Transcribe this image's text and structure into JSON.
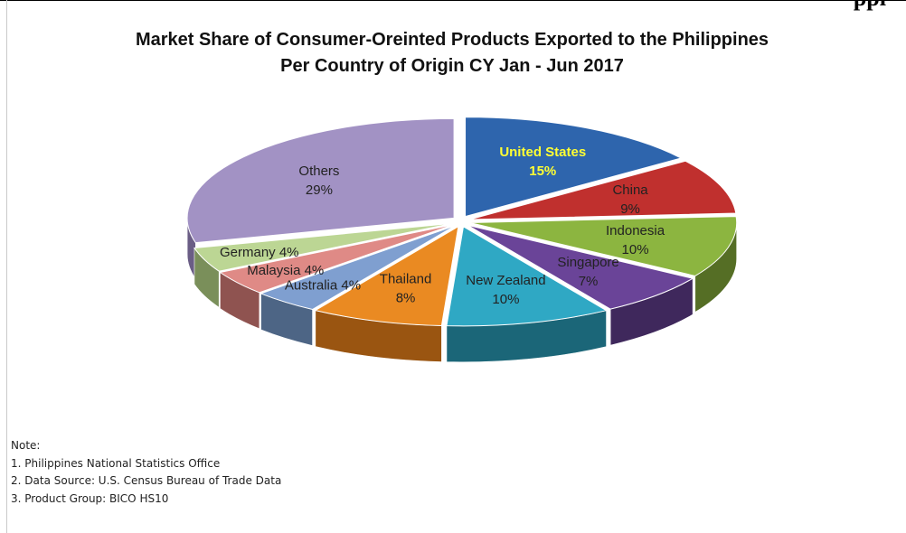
{
  "cut_heading": "ppi",
  "chart_data": {
    "type": "pie",
    "title_line1": "Market Share of Consumer-Oreinted Products Exported to the Philippines",
    "title_line2": "Per Country of Origin CY Jan - Jun 2017",
    "slices": [
      {
        "label": "United States",
        "value": 15,
        "pct": "15%",
        "color": "#2e65ad",
        "side": "#1c3f6e",
        "text_color": "#ffff33",
        "bold": true
      },
      {
        "label": "China",
        "value": 9,
        "pct": "9%",
        "color": "#c0302e",
        "side": "#7a1c1b",
        "text_color": "#222222",
        "bold": false
      },
      {
        "label": "Indonesia",
        "value": 10,
        "pct": "10%",
        "color": "#8cb540",
        "side": "#556e25",
        "text_color": "#222222",
        "bold": false
      },
      {
        "label": "Singapore",
        "value": 7,
        "pct": "7%",
        "color": "#6a4498",
        "side": "#3f285c",
        "text_color": "#222222",
        "bold": false
      },
      {
        "label": "New Zealand",
        "value": 10,
        "pct": "10%",
        "color": "#2fa8c4",
        "side": "#1b6678",
        "text_color": "#222222",
        "bold": false
      },
      {
        "label": "Thailand",
        "value": 8,
        "pct": "8%",
        "color": "#ea8a22",
        "side": "#9a5511",
        "text_color": "#222222",
        "bold": false
      },
      {
        "label": "Australia",
        "value": 4,
        "pct": "4%",
        "color": "#7f9fd0",
        "side": "#4d6585",
        "text_color": "#222222",
        "bold": false
      },
      {
        "label": "Malaysia",
        "value": 4,
        "pct": "4%",
        "color": "#df8a86",
        "side": "#8f5350",
        "text_color": "#222222",
        "bold": false
      },
      {
        "label": "Germany",
        "value": 4,
        "pct": "4%",
        "color": "#bcd694",
        "side": "#7a8f5a",
        "text_color": "#222222",
        "bold": false
      },
      {
        "label": "Others",
        "value": 29,
        "pct": "29%",
        "color": "#a292c4",
        "side": "#6a5d85",
        "text_color": "#222222",
        "bold": false
      }
    ]
  },
  "notes": {
    "heading": "Note:",
    "items": [
      "1.  Philippines National Statistics Office",
      "2.  Data Source: U.S. Census Bureau of Trade Data",
      "3.  Product Group: BICO HS10"
    ]
  }
}
